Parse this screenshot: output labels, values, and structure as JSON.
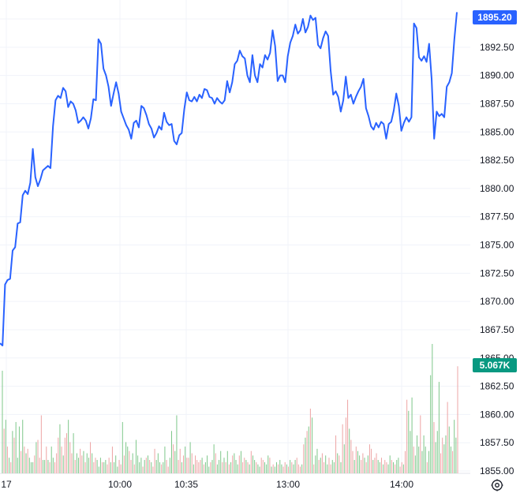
{
  "chart_data": {
    "type": "line",
    "title": "",
    "xlabel": "",
    "ylabel": "",
    "x_tick_labels": [
      "17",
      "10:00",
      "10:35",
      "13:00",
      "14:00"
    ],
    "y_tick_labels": [
      "1895.00",
      "1892.50",
      "1890.00",
      "1887.50",
      "1885.00",
      "1882.50",
      "1880.00",
      "1877.50",
      "1875.00",
      "1872.50",
      "1870.00",
      "1867.50",
      "1865.00",
      "1862.50",
      "1860.00",
      "1857.50",
      "1855.00"
    ],
    "ylim": [
      1855.0,
      1895.8
    ],
    "grid": true,
    "price_series": {
      "name": "",
      "color": "#2962ff",
      "values": [
        1866.3,
        1866.1,
        1871.5,
        1871.9,
        1872.0,
        1874.5,
        1874.8,
        1876.9,
        1877.0,
        1879.4,
        1879.8,
        1879.5,
        1880.5,
        1883.5,
        1881.0,
        1880.2,
        1880.8,
        1881.6,
        1881.8,
        1882.0,
        1881.8,
        1885.5,
        1887.8,
        1888.2,
        1888.0,
        1888.9,
        1888.6,
        1887.2,
        1887.7,
        1887.5,
        1886.9,
        1885.8,
        1886.0,
        1886.3,
        1886.0,
        1885.3,
        1886.2,
        1887.9,
        1887.8,
        1893.2,
        1892.8,
        1890.6,
        1890.0,
        1889.0,
        1887.3,
        1888.4,
        1889.4,
        1888.4,
        1886.8,
        1886.2,
        1885.6,
        1885.2,
        1884.4,
        1885.8,
        1886.0,
        1885.4,
        1887.3,
        1887.1,
        1886.5,
        1885.7,
        1885.3,
        1884.5,
        1884.9,
        1885.5,
        1885.2,
        1886.7,
        1885.9,
        1885.6,
        1885.7,
        1884.2,
        1883.9,
        1884.7,
        1884.9,
        1887.0,
        1888.5,
        1887.8,
        1887.7,
        1888.1,
        1887.7,
        1888.3,
        1888.0,
        1888.8,
        1888.7,
        1888.1,
        1888.0,
        1887.5,
        1888.0,
        1887.7,
        1887.5,
        1887.8,
        1889.5,
        1888.5,
        1889.4,
        1891.0,
        1891.3,
        1892.2,
        1891.7,
        1891.5,
        1890.0,
        1889.4,
        1891.8,
        1890.0,
        1889.4,
        1891.0,
        1890.7,
        1891.8,
        1891.4,
        1892.0,
        1894.0,
        1892.6,
        1889.5,
        1890.0,
        1890.0,
        1889.4,
        1891.7,
        1892.9,
        1893.5,
        1894.5,
        1893.7,
        1894.0,
        1895.0,
        1893.8,
        1894.3,
        1895.3,
        1894.9,
        1895.1,
        1892.7,
        1892.4,
        1893.3,
        1893.9,
        1893.5,
        1890.4,
        1888.3,
        1888.6,
        1888.1,
        1886.8,
        1887.8,
        1889.9,
        1888.0,
        1888.3,
        1887.5,
        1888.1,
        1888.6,
        1889.0,
        1889.7,
        1887.1,
        1886.4,
        1885.5,
        1885.2,
        1885.8,
        1885.4,
        1885.9,
        1885.7,
        1884.4,
        1885.7,
        1885.9,
        1886.9,
        1888.4,
        1887.3,
        1885.1,
        1885.8,
        1886.3,
        1885.9,
        1886.3,
        1894.6,
        1894.2,
        1891.6,
        1891.3,
        1891.7,
        1891.2,
        1892.8,
        1889.7,
        1884.4,
        1886.8,
        1886.4,
        1886.6,
        1886.3,
        1889.0,
        1889.4,
        1890.2,
        1893.2,
        1895.6
      ]
    },
    "price_label": {
      "text": "1895.20",
      "color": "#2962ff"
    },
    "volume_series": {
      "name": "",
      "up_color": "#7ec78a",
      "down_color": "#eda4a4",
      "values": [
        4.6,
        2.0,
        2.4,
        1.2,
        0.7,
        0.5,
        1.9,
        1.6,
        2.3,
        0.7,
        2.1,
        1.0,
        2.4,
        1.2,
        0.9,
        1.1,
        0.7,
        0.5,
        0.5,
        0.8,
        1.4,
        1.5,
        0.7,
        2.6,
        0.6,
        0.6,
        1.2,
        0.6,
        0.5,
        1.2,
        0.7,
        0.5,
        0.9,
        1.6,
        2.2,
        1.2,
        0.8,
        1.6,
        1.8,
        2.4,
        1.4,
        0.9,
        1.8,
        0.6,
        0.9,
        0.7,
        1.1,
        0.8,
        1.0,
        0.5,
        0.9,
        0.7,
        1.4,
        0.9,
        0.5,
        0.7,
        0.6,
        0.3,
        0.7,
        0.5,
        0.5,
        0.6,
        0.4,
        0.7,
        0.5,
        1.2,
        0.5,
        0.8,
        0.3,
        0.6,
        0.4,
        2.3,
        0.8,
        1.4,
        1.2,
        1.0,
        0.6,
        0.9,
        0.4,
        1.5,
        0.8,
        0.5,
        0.7,
        0.3,
        0.6,
        0.7,
        0.8,
        0.6,
        0.5,
        0.3,
        1.1,
        0.6,
        0.9,
        0.5,
        0.4,
        0.5,
        1.2,
        0.6,
        0.3,
        0.7,
        1.9,
        1.3,
        1.0,
        2.6,
        0.6,
        1.1,
        0.5,
        0.8,
        1.2,
        0.7,
        0.7,
        1.4,
        0.9,
        0.4,
        0.8,
        0.6,
        0.5,
        0.6,
        0.7,
        0.4,
        0.5,
        0.8,
        0.3,
        0.5,
        0.6,
        1.3,
        0.9,
        0.4,
        0.6,
        1.0,
        0.5,
        0.7,
        0.5,
        1.0,
        0.4,
        0.5,
        0.8,
        0.9,
        0.6,
        0.4,
        0.8,
        1.0,
        0.5,
        0.7,
        0.6,
        0.5,
        0.4,
        1.0,
        0.8,
        0.6,
        0.5,
        0.4,
        0.3,
        0.7,
        0.6,
        0.5,
        0.4,
        0.8,
        0.7,
        0.3,
        0.4,
        0.3,
        0.5,
        0.4,
        0.6,
        0.4,
        0.3,
        0.5,
        0.4,
        0.3,
        0.6,
        0.5,
        0.4,
        0.6,
        0.7,
        0.4,
        0.3,
        0.4,
        1.3,
        1.6,
        1.9,
        2.1,
        2.9,
        2.5,
        0.4,
        0.8,
        1.1,
        0.6,
        0.7,
        0.9,
        0.5,
        0.8,
        0.4,
        0.7,
        0.4,
        0.6,
        0.5,
        1.7,
        0.9,
        0.8,
        0.5,
        2.2,
        1.3,
        2.5,
        3.3,
        2.0,
        1.5,
        1.0,
        0.6,
        1.2,
        1.0,
        0.8,
        0.6,
        0.9,
        0.7,
        0.5,
        0.8,
        1.3,
        1.1,
        0.6,
        0.7,
        0.9,
        0.6,
        0.5,
        0.7,
        0.4,
        0.6,
        0.5,
        0.4,
        0.8,
        0.6,
        0.5,
        0.4,
        0.6,
        0.7,
        0.3,
        0.5,
        0.4,
        1.0,
        3.3,
        2.8,
        1.9,
        3.4,
        1.2,
        0.8,
        1.7,
        1.2,
        2.6,
        1.0,
        1.7,
        1.2,
        0.5,
        1.0,
        4.4,
        5.8,
        2.3,
        1.4,
        1.9,
        4.1,
        0.9,
        1.6,
        1.3,
        1.7,
        3.2,
        2.1,
        1.2,
        1.0,
        2.4,
        1.6,
        4.8
      ],
      "colors": [
        "up",
        "down",
        "up",
        "down",
        "up",
        "down",
        "up",
        "down",
        "up",
        "up",
        "up",
        "down",
        "up",
        "down",
        "up",
        "down",
        "up",
        "up",
        "up",
        "down",
        "up",
        "down",
        "down",
        "down",
        "up",
        "up",
        "down",
        "up",
        "down",
        "up",
        "up",
        "down",
        "down",
        "down",
        "up",
        "down",
        "up",
        "down",
        "down",
        "up",
        "down",
        "down",
        "up",
        "down",
        "up",
        "up",
        "down",
        "down",
        "up",
        "down",
        "up",
        "up",
        "down",
        "up",
        "down",
        "down",
        "up",
        "up",
        "up",
        "down",
        "up",
        "up",
        "down",
        "down",
        "up",
        "down",
        "up",
        "up",
        "up",
        "down",
        "down",
        "up",
        "down",
        "up",
        "up",
        "down",
        "down",
        "up",
        "down",
        "up",
        "up",
        "up",
        "up",
        "down",
        "up",
        "down",
        "up",
        "down",
        "up",
        "down",
        "down",
        "up",
        "up",
        "up",
        "down",
        "up",
        "up",
        "down",
        "down",
        "up",
        "up",
        "down",
        "up",
        "up",
        "down",
        "down",
        "up",
        "down",
        "up",
        "down",
        "down",
        "up",
        "down",
        "up",
        "down",
        "down",
        "down",
        "down",
        "up",
        "down",
        "up",
        "up",
        "up",
        "down",
        "up",
        "up",
        "down",
        "up",
        "up",
        "up",
        "down",
        "up",
        "down",
        "up",
        "down",
        "up",
        "down",
        "up",
        "up",
        "up",
        "down",
        "up",
        "down",
        "down",
        "up",
        "down",
        "up",
        "down",
        "up",
        "up",
        "down",
        "up",
        "up",
        "down",
        "down",
        "up",
        "up",
        "up",
        "down",
        "up",
        "down",
        "up",
        "up",
        "down",
        "up",
        "up",
        "down",
        "down",
        "up",
        "down",
        "up",
        "down",
        "up",
        "up",
        "down",
        "down",
        "down",
        "up",
        "down",
        "up",
        "down",
        "up",
        "down",
        "up",
        "down",
        "up",
        "up",
        "down",
        "up",
        "down",
        "down",
        "up",
        "up",
        "down",
        "down",
        "up",
        "up",
        "down",
        "up",
        "down",
        "up",
        "down",
        "up",
        "down",
        "down",
        "up",
        "down",
        "down",
        "up",
        "down",
        "up",
        "up",
        "down",
        "down",
        "up",
        "down",
        "up",
        "down",
        "down",
        "up",
        "down",
        "down",
        "up",
        "up",
        "down",
        "up",
        "down",
        "down",
        "up",
        "up",
        "down",
        "up",
        "down",
        "up",
        "up",
        "down",
        "down",
        "up",
        "down",
        "down",
        "up",
        "up",
        "up",
        "down",
        "up",
        "up",
        "up",
        "down",
        "up",
        "up",
        "up",
        "down",
        "up",
        "up",
        "up",
        "down",
        "up",
        "up",
        "up",
        "down",
        "down",
        "up",
        "up",
        "down",
        "up",
        "up",
        "down",
        "up",
        "up",
        "down",
        "up",
        "down",
        "up",
        "up"
      ]
    },
    "volume_label": {
      "text": "5.067K",
      "color": "#089981"
    }
  },
  "settings_icon": "gear-icon"
}
